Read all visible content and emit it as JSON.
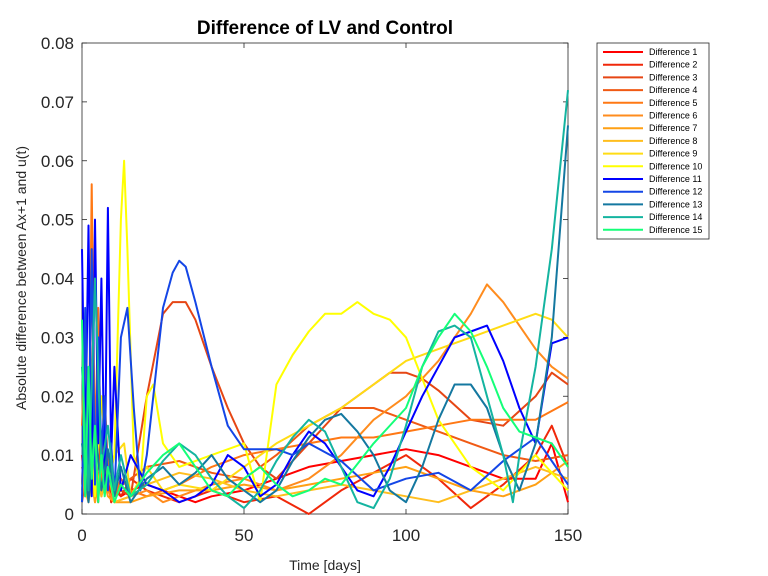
{
  "chart_data": {
    "type": "line",
    "title": "Difference of LV and Control",
    "xlabel": "Time [days]",
    "ylabel": "Absolute difference between Ax+1 and u(t)",
    "xlim": [
      0,
      150
    ],
    "ylim": [
      0,
      0.08
    ],
    "xticks": [
      "0",
      "50",
      "100",
      "150"
    ],
    "yticks": [
      "0",
      "0.01",
      "0.02",
      "0.03",
      "0.04",
      "0.05",
      "0.06",
      "0.07",
      "0.08"
    ],
    "grid": false,
    "legend_position": "outside-top-right",
    "series": [
      {
        "name": "Difference 1",
        "color": "#ff0000",
        "x": [
          0,
          1,
          2,
          3,
          4,
          5,
          6,
          7,
          8,
          9,
          10,
          12,
          15,
          20,
          25,
          30,
          35,
          40,
          50,
          60,
          70,
          80,
          90,
          100,
          110,
          120,
          130,
          140,
          145,
          150
        ],
        "y": [
          0.01,
          0.003,
          0.02,
          0.006,
          0.015,
          0.002,
          0.012,
          0.004,
          0.008,
          0.002,
          0.005,
          0.003,
          0.004,
          0.005,
          0.004,
          0.003,
          0.002,
          0.003,
          0.004,
          0.006,
          0.008,
          0.009,
          0.01,
          0.011,
          0.01,
          0.008,
          0.006,
          0.006,
          0.012,
          0.002
        ]
      },
      {
        "name": "Difference 2",
        "color": "#f0280a",
        "x": [
          0,
          1,
          2,
          3,
          4,
          5,
          6,
          7,
          8,
          9,
          10,
          12,
          15,
          20,
          25,
          30,
          35,
          40,
          50,
          60,
          70,
          80,
          90,
          100,
          110,
          120,
          130,
          140,
          145,
          150
        ],
        "y": [
          0.005,
          0.02,
          0.002,
          0.045,
          0.01,
          0.02,
          0.003,
          0.015,
          0.006,
          0.002,
          0.004,
          0.003,
          0.006,
          0.004,
          0.003,
          0.002,
          0.003,
          0.004,
          0.002,
          0.003,
          0.0,
          0.004,
          0.007,
          0.01,
          0.006,
          0.001,
          0.005,
          0.01,
          0.015,
          0.008
        ]
      },
      {
        "name": "Difference 3",
        "color": "#e64614",
        "x": [
          0,
          2,
          4,
          6,
          8,
          10,
          12,
          15,
          20,
          25,
          28,
          32,
          35,
          40,
          45,
          50,
          55,
          60,
          65,
          70,
          80,
          90,
          95,
          100,
          105,
          110,
          120,
          130,
          140,
          145,
          150
        ],
        "y": [
          0.002,
          0.01,
          0.005,
          0.012,
          0.006,
          0.003,
          0.004,
          0.003,
          0.02,
          0.034,
          0.036,
          0.036,
          0.033,
          0.025,
          0.018,
          0.012,
          0.008,
          0.006,
          0.009,
          0.012,
          0.018,
          0.022,
          0.024,
          0.024,
          0.023,
          0.021,
          0.016,
          0.015,
          0.02,
          0.024,
          0.022
        ]
      },
      {
        "name": "Difference 4",
        "color": "#f05a14",
        "x": [
          0,
          2,
          4,
          6,
          8,
          10,
          15,
          20,
          30,
          40,
          50,
          60,
          70,
          80,
          90,
          100,
          110,
          120,
          130,
          140,
          150
        ],
        "y": [
          0.008,
          0.003,
          0.012,
          0.006,
          0.01,
          0.004,
          0.006,
          0.008,
          0.009,
          0.007,
          0.006,
          0.01,
          0.015,
          0.018,
          0.018,
          0.016,
          0.014,
          0.012,
          0.01,
          0.009,
          0.01
        ]
      },
      {
        "name": "Difference 5",
        "color": "#ff7814",
        "x": [
          0,
          1,
          2,
          3,
          4,
          5,
          6,
          7,
          8,
          10,
          12,
          15,
          20,
          30,
          40,
          50,
          60,
          70,
          80,
          90,
          100,
          110,
          120,
          130,
          140,
          150
        ],
        "y": [
          0.015,
          0.03,
          0.005,
          0.056,
          0.01,
          0.035,
          0.004,
          0.02,
          0.008,
          0.003,
          0.006,
          0.004,
          0.003,
          0.005,
          0.008,
          0.01,
          0.011,
          0.012,
          0.013,
          0.013,
          0.014,
          0.015,
          0.016,
          0.016,
          0.016,
          0.019
        ]
      },
      {
        "name": "Difference 6",
        "color": "#ff8c1e",
        "x": [
          0,
          2,
          4,
          6,
          8,
          10,
          15,
          20,
          25,
          30,
          40,
          50,
          60,
          70,
          80,
          90,
          100,
          110,
          115,
          120,
          125,
          130,
          135,
          140,
          145,
          150
        ],
        "y": [
          0.004,
          0.012,
          0.002,
          0.01,
          0.004,
          0.002,
          0.003,
          0.004,
          0.002,
          0.003,
          0.005,
          0.006,
          0.004,
          0.006,
          0.01,
          0.016,
          0.02,
          0.026,
          0.03,
          0.034,
          0.039,
          0.036,
          0.032,
          0.028,
          0.025,
          0.023
        ]
      },
      {
        "name": "Difference 7",
        "color": "#ffa014",
        "x": [
          0,
          2,
          4,
          6,
          8,
          10,
          15,
          20,
          30,
          40,
          50,
          60,
          70,
          80,
          90,
          100,
          110,
          120,
          130,
          140,
          150
        ],
        "y": [
          0.003,
          0.009,
          0.002,
          0.008,
          0.003,
          0.002,
          0.002,
          0.003,
          0.004,
          0.004,
          0.005,
          0.004,
          0.005,
          0.006,
          0.007,
          0.008,
          0.006,
          0.004,
          0.003,
          0.005,
          0.009
        ]
      },
      {
        "name": "Difference 8",
        "color": "#ffbe1e",
        "x": [
          0,
          2,
          4,
          6,
          8,
          10,
          15,
          20,
          30,
          40,
          50,
          60,
          70,
          80,
          90,
          100,
          110,
          120,
          130,
          140,
          150
        ],
        "y": [
          0.006,
          0.002,
          0.009,
          0.003,
          0.007,
          0.002,
          0.003,
          0.005,
          0.007,
          0.006,
          0.004,
          0.003,
          0.004,
          0.005,
          0.004,
          0.003,
          0.002,
          0.004,
          0.006,
          0.008,
          0.006
        ]
      },
      {
        "name": "Difference 9",
        "color": "#ffdc14",
        "x": [
          0,
          2,
          4,
          6,
          8,
          10,
          13,
          15,
          20,
          25,
          30,
          40,
          50,
          60,
          70,
          80,
          90,
          100,
          110,
          120,
          130,
          140,
          145,
          150
        ],
        "y": [
          0.004,
          0.015,
          0.005,
          0.02,
          0.006,
          0.01,
          0.012,
          0.003,
          0.008,
          0.004,
          0.005,
          0.004,
          0.008,
          0.012,
          0.015,
          0.018,
          0.022,
          0.026,
          0.028,
          0.03,
          0.032,
          0.034,
          0.033,
          0.03
        ]
      },
      {
        "name": "Difference 10",
        "color": "#ffff00",
        "x": [
          0,
          2,
          4,
          6,
          8,
          10,
          12,
          13,
          14,
          16,
          18,
          20,
          22,
          25,
          30,
          40,
          50,
          55,
          60,
          65,
          70,
          75,
          80,
          85,
          90,
          95,
          100,
          110,
          120,
          130,
          140,
          150
        ],
        "y": [
          0.005,
          0.015,
          0.003,
          0.02,
          0.005,
          0.01,
          0.05,
          0.06,
          0.045,
          0.01,
          0.005,
          0.02,
          0.022,
          0.012,
          0.008,
          0.01,
          0.012,
          0.002,
          0.022,
          0.027,
          0.031,
          0.034,
          0.034,
          0.036,
          0.034,
          0.033,
          0.03,
          0.016,
          0.008,
          0.004,
          0.01,
          0.004
        ]
      },
      {
        "name": "Difference 11",
        "color": "#0000ff",
        "x": [
          0,
          1,
          2,
          3,
          4,
          5,
          6,
          7,
          8,
          9,
          10,
          12,
          15,
          20,
          25,
          30,
          35,
          40,
          45,
          50,
          55,
          60,
          65,
          70,
          75,
          80,
          85,
          90,
          95,
          100,
          105,
          110,
          115,
          120,
          125,
          130,
          135,
          140,
          145,
          150
        ],
        "y": [
          0.045,
          0.01,
          0.049,
          0.003,
          0.05,
          0.012,
          0.04,
          0.005,
          0.052,
          0.01,
          0.025,
          0.004,
          0.01,
          0.005,
          0.004,
          0.002,
          0.003,
          0.005,
          0.01,
          0.008,
          0.003,
          0.005,
          0.01,
          0.014,
          0.012,
          0.008,
          0.004,
          0.003,
          0.008,
          0.014,
          0.02,
          0.025,
          0.03,
          0.031,
          0.032,
          0.026,
          0.018,
          0.012,
          0.029,
          0.03
        ]
      },
      {
        "name": "Difference 12",
        "color": "#1446e6",
        "x": [
          0,
          1,
          2,
          3,
          4,
          5,
          6,
          7,
          8,
          9,
          10,
          12,
          14,
          16,
          18,
          20,
          22,
          25,
          28,
          30,
          32,
          35,
          40,
          45,
          50,
          55,
          60,
          65,
          70,
          80,
          90,
          100,
          110,
          120,
          130,
          140,
          150
        ],
        "y": [
          0.002,
          0.035,
          0.008,
          0.045,
          0.005,
          0.03,
          0.01,
          0.02,
          0.004,
          0.012,
          0.003,
          0.03,
          0.035,
          0.018,
          0.004,
          0.01,
          0.02,
          0.035,
          0.041,
          0.043,
          0.042,
          0.036,
          0.025,
          0.015,
          0.011,
          0.011,
          0.011,
          0.01,
          0.012,
          0.009,
          0.004,
          0.006,
          0.007,
          0.004,
          0.009,
          0.013,
          0.005
        ]
      },
      {
        "name": "Difference 13",
        "color": "#1478a0",
        "x": [
          0,
          2,
          4,
          6,
          8,
          10,
          12,
          15,
          20,
          25,
          30,
          35,
          40,
          45,
          50,
          55,
          60,
          65,
          70,
          75,
          80,
          85,
          90,
          95,
          100,
          105,
          110,
          115,
          120,
          125,
          130,
          135,
          140,
          145,
          150
        ],
        "y": [
          0.012,
          0.002,
          0.015,
          0.004,
          0.011,
          0.003,
          0.008,
          0.002,
          0.006,
          0.008,
          0.005,
          0.007,
          0.01,
          0.006,
          0.004,
          0.002,
          0.004,
          0.009,
          0.013,
          0.016,
          0.017,
          0.014,
          0.01,
          0.004,
          0.002,
          0.008,
          0.016,
          0.022,
          0.022,
          0.018,
          0.01,
          0.004,
          0.012,
          0.03,
          0.066
        ]
      },
      {
        "name": "Difference 14",
        "color": "#14b4a0",
        "x": [
          0,
          2,
          4,
          6,
          8,
          10,
          12,
          15,
          20,
          25,
          30,
          35,
          40,
          45,
          50,
          55,
          60,
          65,
          70,
          75,
          80,
          85,
          90,
          95,
          100,
          105,
          110,
          115,
          120,
          125,
          130,
          133,
          135,
          140,
          145,
          150
        ],
        "y": [
          0.025,
          0.004,
          0.04,
          0.008,
          0.015,
          0.004,
          0.01,
          0.003,
          0.005,
          0.009,
          0.012,
          0.01,
          0.006,
          0.003,
          0.001,
          0.004,
          0.009,
          0.013,
          0.016,
          0.014,
          0.008,
          0.002,
          0.001,
          0.006,
          0.015,
          0.025,
          0.031,
          0.032,
          0.03,
          0.02,
          0.01,
          0.002,
          0.01,
          0.025,
          0.045,
          0.072
        ]
      },
      {
        "name": "Difference 15",
        "color": "#14ff78",
        "x": [
          0,
          1,
          2,
          3,
          4,
          5,
          6,
          7,
          8,
          10,
          12,
          15,
          20,
          25,
          30,
          35,
          40,
          45,
          50,
          55,
          60,
          65,
          70,
          75,
          80,
          90,
          100,
          105,
          110,
          115,
          120,
          125,
          130,
          135,
          140,
          145,
          150
        ],
        "y": [
          0.033,
          0.003,
          0.025,
          0.006,
          0.015,
          0.002,
          0.01,
          0.003,
          0.008,
          0.002,
          0.005,
          0.003,
          0.007,
          0.01,
          0.012,
          0.008,
          0.004,
          0.003,
          0.006,
          0.008,
          0.005,
          0.003,
          0.004,
          0.006,
          0.005,
          0.012,
          0.018,
          0.025,
          0.03,
          0.034,
          0.031,
          0.025,
          0.018,
          0.014,
          0.013,
          0.012,
          0.008
        ]
      }
    ]
  }
}
